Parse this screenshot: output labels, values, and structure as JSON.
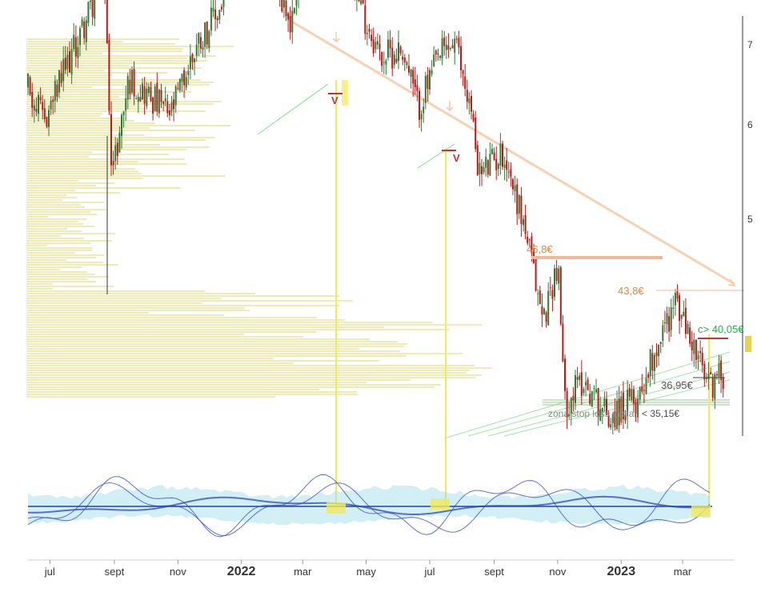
{
  "chart_data": {
    "type": "candlestick",
    "x_ticks": [
      {
        "label": "jul",
        "date": "2021-07-01",
        "bold": false
      },
      {
        "label": "sept",
        "date": "2021-09-01",
        "bold": false
      },
      {
        "label": "nov",
        "date": "2021-11-01",
        "bold": false
      },
      {
        "label": "2022",
        "date": "2022-01-01",
        "bold": true
      },
      {
        "label": "mar",
        "date": "2022-03-01",
        "bold": false
      },
      {
        "label": "may",
        "date": "2022-05-01",
        "bold": false
      },
      {
        "label": "jul",
        "date": "2022-07-01",
        "bold": false
      },
      {
        "label": "sept",
        "date": "2022-09-01",
        "bold": false
      },
      {
        "label": "nov",
        "date": "2022-11-01",
        "bold": false
      },
      {
        "label": "2023",
        "date": "2023-01-01",
        "bold": true
      },
      {
        "label": "mar",
        "date": "2023-03-01",
        "bold": false
      }
    ],
    "y_tick_fragments": [
      "7",
      "6",
      "5"
    ],
    "price_path": [
      {
        "date": "2021-06-10",
        "price": 58.5
      },
      {
        "date": "2021-06-25",
        "price": 56.0
      },
      {
        "date": "2021-07-15",
        "price": 59.5
      },
      {
        "date": "2021-08-05",
        "price": 63.0
      },
      {
        "date": "2021-08-22",
        "price": 66.0
      },
      {
        "date": "2021-08-30",
        "price": 52.5
      },
      {
        "date": "2021-09-15",
        "price": 59.0
      },
      {
        "date": "2021-10-10",
        "price": 57.5
      },
      {
        "date": "2021-10-25",
        "price": 56.5
      },
      {
        "date": "2021-11-20",
        "price": 61.5
      },
      {
        "date": "2021-12-10",
        "price": 63.5
      },
      {
        "date": "2022-01-10",
        "price": 70.0
      },
      {
        "date": "2022-01-20",
        "price": 71.5
      },
      {
        "date": "2022-02-05",
        "price": 65.5
      },
      {
        "date": "2022-02-18",
        "price": 62.5
      },
      {
        "date": "2022-03-05",
        "price": 70.5
      },
      {
        "date": "2022-03-20",
        "price": 66.5
      },
      {
        "date": "2022-04-05",
        "price": 68.5
      },
      {
        "date": "2022-04-15",
        "price": 67.0
      },
      {
        "date": "2022-04-25",
        "price": 64.0
      },
      {
        "date": "2022-05-15",
        "price": 60.5
      },
      {
        "date": "2022-06-05",
        "price": 61.0
      },
      {
        "date": "2022-06-20",
        "price": 57.0
      },
      {
        "date": "2022-07-10",
        "price": 60.5
      },
      {
        "date": "2022-07-25",
        "price": 61.5
      },
      {
        "date": "2022-08-08",
        "price": 57.5
      },
      {
        "date": "2022-08-18",
        "price": 52.5
      },
      {
        "date": "2022-09-10",
        "price": 54.0
      },
      {
        "date": "2022-09-30",
        "price": 49.0
      },
      {
        "date": "2022-10-18",
        "price": 42.5
      },
      {
        "date": "2022-11-01",
        "price": 46.5
      },
      {
        "date": "2022-11-08",
        "price": 36.8
      },
      {
        "date": "2022-11-25",
        "price": 38.5
      },
      {
        "date": "2022-12-20",
        "price": 36.0
      },
      {
        "date": "2023-01-15",
        "price": 37.0
      },
      {
        "date": "2023-02-05",
        "price": 41.0
      },
      {
        "date": "2023-02-22",
        "price": 43.8
      },
      {
        "date": "2023-03-10",
        "price": 41.0
      },
      {
        "date": "2023-03-25",
        "price": 38.0
      },
      {
        "date": "2023-04-10",
        "price": 39.0
      }
    ],
    "annotations": {
      "resistance_1": {
        "label": "46,8€",
        "price": 46.8,
        "color": "#e8843a"
      },
      "resistance_2": {
        "label": "43,8€",
        "price": 43.8,
        "color": "#e8843a"
      },
      "buy_signal": {
        "label": "c> 40,05€",
        "price": 40.05,
        "color": "#22b04a"
      },
      "support": {
        "label": "36,95€",
        "price": 36.95,
        "color": "#555555"
      },
      "stop_loss_text": "zona stop loss inicial",
      "stop_loss_value": "< 35,15€",
      "sell_markers": [
        "V",
        "V"
      ]
    },
    "colors": {
      "up": "#2e7d32",
      "down": "#b71c1c",
      "volume_profile": "#ece7a8",
      "trendline": "#f5c8a0",
      "signal_line": "#f2ea58",
      "oscillator": "#3a4fc0",
      "oscillator_band": "#9adbe8"
    }
  }
}
